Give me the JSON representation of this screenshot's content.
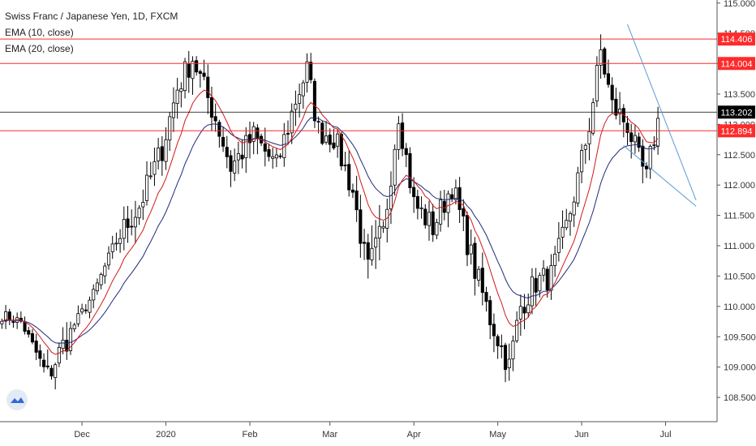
{
  "legend": {
    "symbol": "Swiss Franc / Japanese Yen, 1D, FXCM",
    "ema10": "EMA (10, close)",
    "ema20": "EMA (20, close)"
  },
  "colors": {
    "up": "#ffffff",
    "down": "#000000",
    "wick": "#000000",
    "ema10": "#d11a1a",
    "ema20": "#1f2a78",
    "level": "#ff2a2a",
    "trendline": "#5b9bd5",
    "price_line": "#000000",
    "axis_text": "#333333"
  },
  "logo_icon": "tradingview-cloud-icon",
  "chart_data": {
    "type": "candlestick",
    "title": "Swiss Franc / Japanese Yen, 1D, FXCM",
    "ylim": [
      108.1,
      115.05
    ],
    "y_ticks": [
      "115.000",
      "114.500",
      "114.000",
      "113.500",
      "113.000",
      "112.500",
      "112.000",
      "111.500",
      "111.000",
      "110.500",
      "110.000",
      "109.500",
      "109.000",
      "108.500"
    ],
    "x_ticks": [
      {
        "label": "Dec",
        "index": 21
      },
      {
        "label": "2020",
        "index": 43
      },
      {
        "label": "Feb",
        "index": 65
      },
      {
        "label": "Mar",
        "index": 86
      },
      {
        "label": "Apr",
        "index": 108
      },
      {
        "label": "May",
        "index": 130
      },
      {
        "label": "Jun",
        "index": 152
      },
      {
        "label": "Jul",
        "index": 174
      }
    ],
    "n_slots": 188,
    "series": [
      {
        "name": "EMA (10, close)",
        "type": "line"
      },
      {
        "name": "EMA (20, close)",
        "type": "line"
      }
    ],
    "waypoints": [
      [
        0,
        109.85,
        "flat"
      ],
      [
        5,
        109.75,
        "flat"
      ],
      [
        12,
        108.85,
        "sharp"
      ],
      [
        18,
        109.6,
        "flat"
      ],
      [
        24,
        110.2,
        "flat"
      ],
      [
        30,
        111.1,
        "vol"
      ],
      [
        36,
        111.65,
        "vol"
      ],
      [
        42,
        112.6,
        "vol"
      ],
      [
        46,
        113.6,
        "vol"
      ],
      [
        50,
        114.1,
        "vol"
      ],
      [
        56,
        113.1,
        "vol"
      ],
      [
        60,
        112.3,
        "vol"
      ],
      [
        66,
        112.8,
        "vol"
      ],
      [
        72,
        112.3,
        "vol"
      ],
      [
        77,
        113.4,
        "vol"
      ],
      [
        80,
        113.9,
        "vol"
      ],
      [
        83,
        112.9,
        "vol"
      ],
      [
        87,
        112.8,
        "vol"
      ],
      [
        92,
        111.9,
        "vol"
      ],
      [
        96,
        110.5,
        "wild"
      ],
      [
        100,
        111.2,
        "vol"
      ],
      [
        104,
        113.2,
        "vol"
      ],
      [
        108,
        111.7,
        "vol"
      ],
      [
        113,
        111.3,
        "vol"
      ],
      [
        118,
        112.0,
        "vol"
      ],
      [
        124,
        110.6,
        "vol"
      ],
      [
        128,
        109.8,
        "vol"
      ],
      [
        133,
        109.0,
        "sharp"
      ],
      [
        136,
        110.0,
        "vol"
      ],
      [
        140,
        110.4,
        "vol"
      ],
      [
        144,
        110.5,
        "vol"
      ],
      [
        148,
        111.3,
        "vol"
      ],
      [
        151,
        112.1,
        "vol"
      ],
      [
        154,
        113.0,
        "vol"
      ],
      [
        157,
        114.2,
        "sharp"
      ],
      [
        160,
        113.3,
        "vol"
      ],
      [
        164,
        113.0,
        "vol"
      ],
      [
        167,
        112.4,
        "vol"
      ],
      [
        169,
        112.1,
        "vol"
      ],
      [
        171,
        112.8,
        "vol"
      ],
      [
        172,
        113.1,
        "vol"
      ]
    ],
    "levels": [
      {
        "value": 114.406,
        "label": "114.406",
        "color": "#ff2a2a"
      },
      {
        "value": 114.004,
        "label": "114.004",
        "color": "#ff2a2a"
      },
      {
        "value": 112.894,
        "label": "112.894",
        "color": "#ff2a2a"
      }
    ],
    "last_price": {
      "value": 113.202,
      "label": "113.202"
    },
    "trendlines": [
      {
        "x1": 164,
        "y1": 114.65,
        "x2": 182,
        "y2": 111.75
      },
      {
        "x1": 163,
        "y1": 112.65,
        "x2": 182,
        "y2": 111.65
      }
    ],
    "grid": false
  }
}
